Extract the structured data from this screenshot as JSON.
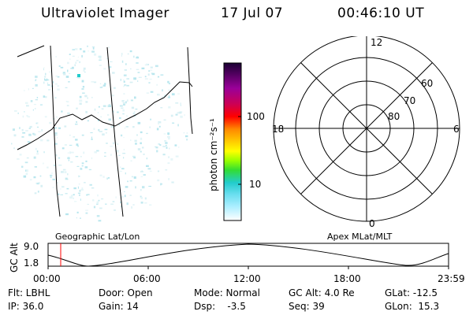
{
  "header": {
    "title": "Ultraviolet Imager",
    "date": "17 Jul 07",
    "time": "00:46:10 UT"
  },
  "colorbar": {
    "unit_label": "photon cm⁻²s⁻¹",
    "ticks": [
      "100",
      "10"
    ],
    "colors": [
      "#1a0033",
      "#5a0066",
      "#9a0099",
      "#cc0055",
      "#ff0000",
      "#ff8800",
      "#ffcc00",
      "#ffff00",
      "#99ff00",
      "#33dd33",
      "#22cccc",
      "#66ddee",
      "#aaeeff",
      "#ffffff"
    ]
  },
  "polar": {
    "mlt_labels": {
      "top": "12",
      "left": "18",
      "right": "6",
      "bottom": "0"
    },
    "lat_labels": [
      "60",
      "70",
      "80"
    ]
  },
  "altitude_plot": {
    "ylabel": "GC Alt",
    "y_ticks": [
      "9.0",
      "1.8"
    ],
    "left_label": "Geographic Lat/Lon",
    "right_label": "Apex MLat/MLT",
    "x_ticks": [
      "00:00",
      "06:00",
      "12:00",
      "18:00",
      "23:59"
    ],
    "marker_color": "#ff0000"
  },
  "status": {
    "row1": [
      "Flt: LBHL",
      "Door: Open",
      "Mode: Normal",
      "GC Alt: 4.0 Re",
      "GLat: -12.5"
    ],
    "row2": [
      "IP: 36.0",
      "Gain: 14",
      "Dsp:    -3.5",
      "Seq: 39",
      "GLon:  15.3"
    ]
  }
}
